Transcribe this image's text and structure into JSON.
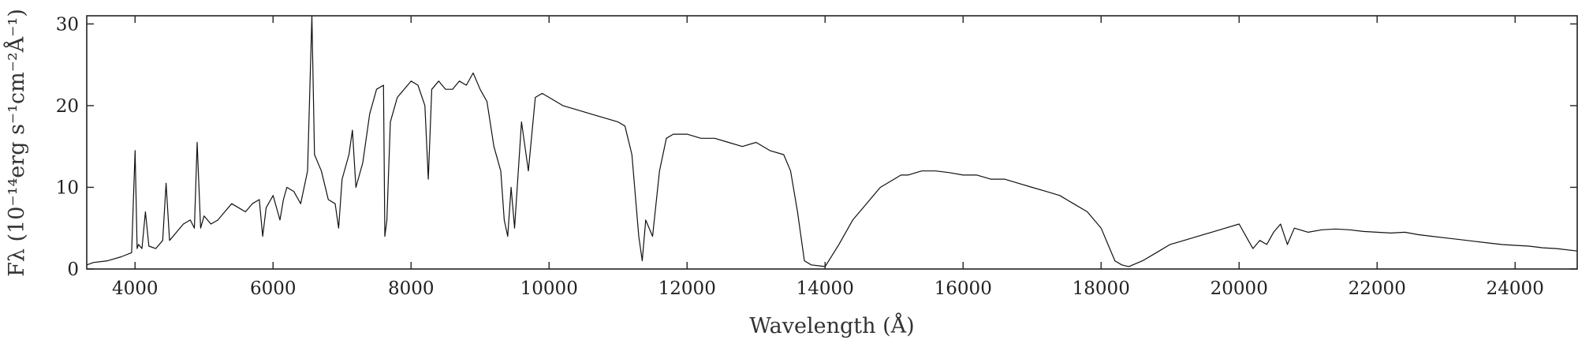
{
  "chart_data": {
    "type": "line",
    "title": "",
    "xlabel": "Wavelength (Å)",
    "ylabel": "Fλ (10⁻¹⁴erg s⁻¹cm⁻²Å⁻¹)",
    "xlim": [
      3300,
      24900
    ],
    "ylim": [
      0,
      31
    ],
    "x_ticks": [
      4000,
      6000,
      8000,
      10000,
      12000,
      14000,
      16000,
      18000,
      20000,
      22000,
      24000
    ],
    "y_ticks": [
      0,
      10,
      20,
      30
    ],
    "grid": false,
    "legend": "none",
    "line_color": "#111111",
    "series": [
      {
        "x": [
          3300,
          3400,
          3600,
          3800,
          3950,
          4000,
          4030,
          4050,
          4100,
          4150,
          4200,
          4300,
          4400,
          4450,
          4500,
          4600,
          4700,
          4800,
          4860,
          4900,
          4950,
          5000,
          5100,
          5200,
          5300,
          5400,
          5500,
          5600,
          5700,
          5800,
          5850,
          5900,
          6000,
          6100,
          6150,
          6200,
          6300,
          6400,
          6500,
          6563,
          6600,
          6700,
          6800,
          6900,
          6950,
          7000,
          7100,
          7150,
          7200,
          7300,
          7400,
          7500,
          7600,
          7620,
          7650,
          7700,
          7800,
          8000,
          8100,
          8200,
          8250,
          8300,
          8400,
          8500,
          8600,
          8700,
          8800,
          8900,
          9000,
          9100,
          9200,
          9300,
          9350,
          9400,
          9450,
          9500,
          9600,
          9700,
          9800,
          9900,
          10000,
          10200,
          10400,
          10600,
          10800,
          11000,
          11100,
          11200,
          11300,
          11350,
          11400,
          11500,
          11600,
          11700,
          11800,
          12000,
          12200,
          12400,
          12600,
          12800,
          13000,
          13200,
          13400,
          13500,
          13600,
          13700,
          13800,
          14000,
          14200,
          14400,
          14600,
          14800,
          15000,
          15100,
          15200,
          15400,
          15600,
          15800,
          16000,
          16200,
          16400,
          16600,
          16800,
          17000,
          17200,
          17400,
          17600,
          17800,
          18000,
          18100,
          18200,
          18300,
          18400,
          18600,
          18800,
          19000,
          19200,
          19400,
          19600,
          19800,
          20000,
          20100,
          20200,
          20300,
          20400,
          20500,
          20600,
          20700,
          20800,
          21000,
          21200,
          21400,
          21600,
          21800,
          22000,
          22200,
          22400,
          22600,
          22800,
          23000,
          23200,
          23400,
          23600,
          23800,
          24000,
          24200,
          24400,
          24600,
          24900
        ],
        "y": [
          0.5,
          0.8,
          1.0,
          1.5,
          2.0,
          14.5,
          2.5,
          3.0,
          2.5,
          7.0,
          2.8,
          2.5,
          3.5,
          10.5,
          3.5,
          4.5,
          5.5,
          6.0,
          5.0,
          15.5,
          5.0,
          6.5,
          5.5,
          6.0,
          7.0,
          8.0,
          7.5,
          7.0,
          8.0,
          8.5,
          4.0,
          7.5,
          9.0,
          6.0,
          8.5,
          10.0,
          9.5,
          8.0,
          12.0,
          31.0,
          14.0,
          12.0,
          8.5,
          8.0,
          5.0,
          11.0,
          14.0,
          17.0,
          10.0,
          13.0,
          19.0,
          22.0,
          22.5,
          4.0,
          6.0,
          18.0,
          21.0,
          23.0,
          22.5,
          20.0,
          11.0,
          22.0,
          23.0,
          22.0,
          22.0,
          23.0,
          22.5,
          24.0,
          22.0,
          20.5,
          15.0,
          12.0,
          6.0,
          4.0,
          10.0,
          5.0,
          18.0,
          12.0,
          21.0,
          21.5,
          21.0,
          20.0,
          19.5,
          19.0,
          18.5,
          18.0,
          17.5,
          14.0,
          4.0,
          1.0,
          6.0,
          4.0,
          12.0,
          16.0,
          16.5,
          16.5,
          16.0,
          16.0,
          15.5,
          15.0,
          15.5,
          14.5,
          14.0,
          12.0,
          7.0,
          1.0,
          0.5,
          0.3,
          3.0,
          6.0,
          8.0,
          10.0,
          11.0,
          11.5,
          11.5,
          12.0,
          12.0,
          11.8,
          11.5,
          11.5,
          11.0,
          11.0,
          10.5,
          10.0,
          9.5,
          9.0,
          8.0,
          7.0,
          5.0,
          3.0,
          1.0,
          0.5,
          0.3,
          1.0,
          2.0,
          3.0,
          3.5,
          4.0,
          4.5,
          5.0,
          5.5,
          4.0,
          2.5,
          3.5,
          3.0,
          4.5,
          5.5,
          3.0,
          5.0,
          4.5,
          4.8,
          4.9,
          4.8,
          4.6,
          4.5,
          4.4,
          4.5,
          4.2,
          4.0,
          3.8,
          3.6,
          3.4,
          3.2,
          3.0,
          2.9,
          2.8,
          2.6,
          2.5,
          2.2
        ]
      }
    ]
  }
}
